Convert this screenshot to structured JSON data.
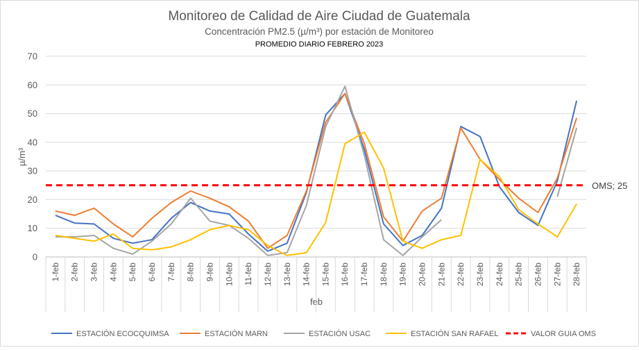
{
  "chart_data": {
    "type": "line",
    "title": "Monitoreo de Calidad de Aire Ciudad de Guatemala",
    "subtitle": "Concentración PM2.5 (µ/m³) por estación de Monitoreo",
    "subtitle2": "PROMEDIO DIARIO FEBRERO 2023",
    "xlabel": "feb",
    "ylabel": "µ/m³",
    "ylim": [
      0,
      70
    ],
    "yticks": [
      0,
      10,
      20,
      30,
      40,
      50,
      60,
      70
    ],
    "grid": true,
    "legend_position": "bottom",
    "categories": [
      "1-feb",
      "2-feb",
      "3-feb",
      "4-feb",
      "5-feb",
      "6-feb",
      "7-feb",
      "8-feb",
      "9-feb",
      "10-feb",
      "11-feb",
      "12-feb",
      "13-feb",
      "14-feb",
      "15-feb",
      "16-feb",
      "17-feb",
      "18-feb",
      "19-feb",
      "20-feb",
      "21-feb",
      "22-feb",
      "23-feb",
      "24-feb",
      "25-feb",
      "26-feb",
      "27-feb",
      "28-feb"
    ],
    "series": [
      {
        "name": "ESTACIÓN ECOCQUIMSA",
        "color": "#4472C4",
        "dash": false,
        "values": [
          14.5,
          11.8,
          11.5,
          6.5,
          4.8,
          6.0,
          13.5,
          19.0,
          16.0,
          15.0,
          8.0,
          2.0,
          4.8,
          22.5,
          49.5,
          57.0,
          37.5,
          11.5,
          4.0,
          7.5,
          17.0,
          45.5,
          42.0,
          24.5,
          15.5,
          11.0,
          26.5,
          54.5
        ]
      },
      {
        "name": "ESTACIÓN MARN",
        "color": "#ED7D31",
        "dash": false,
        "values": [
          16.0,
          14.5,
          17.0,
          11.5,
          7.0,
          13.5,
          19.0,
          23.0,
          20.5,
          17.5,
          12.5,
          3.0,
          7.5,
          23.0,
          47.0,
          57.0,
          39.5,
          14.0,
          5.5,
          16.0,
          20.5,
          45.0,
          34.0,
          27.0,
          20.5,
          15.5,
          27.5,
          48.5
        ]
      },
      {
        "name": "ESTACIÓN USAC",
        "color": "#A5A5A5",
        "dash": false,
        "values": [
          7.0,
          7.0,
          7.5,
          3.0,
          1.0,
          5.5,
          11.5,
          20.5,
          12.5,
          11.0,
          6.5,
          0.5,
          1.5,
          18.0,
          45.5,
          59.5,
          35.5,
          6.0,
          0.5,
          7.0,
          13.0,
          null,
          null,
          null,
          null,
          null,
          21.0,
          45.0
        ]
      },
      {
        "name": "ESTACIÓN SAN RAFAEL",
        "color": "#FFC000",
        "dash": false,
        "values": [
          7.5,
          6.5,
          5.5,
          8.0,
          3.0,
          2.5,
          3.5,
          6.0,
          9.5,
          11.0,
          9.5,
          4.0,
          0.5,
          1.5,
          12.0,
          39.5,
          43.5,
          31.0,
          5.5,
          3.0,
          6.0,
          7.5,
          34.0,
          28.0,
          16.5,
          11.5,
          7.0,
          18.5
        ]
      },
      {
        "name": "VALOR GUIA OMS",
        "color": "#FF0000",
        "dash": true,
        "values": [
          25,
          25,
          25,
          25,
          25,
          25,
          25,
          25,
          25,
          25,
          25,
          25,
          25,
          25,
          25,
          25,
          25,
          25,
          25,
          25,
          25,
          25,
          25,
          25,
          25,
          25,
          25,
          25
        ]
      }
    ],
    "annotations": [
      {
        "text": "OMS; 25",
        "series": "VALOR GUIA OMS",
        "value": 25
      }
    ]
  }
}
